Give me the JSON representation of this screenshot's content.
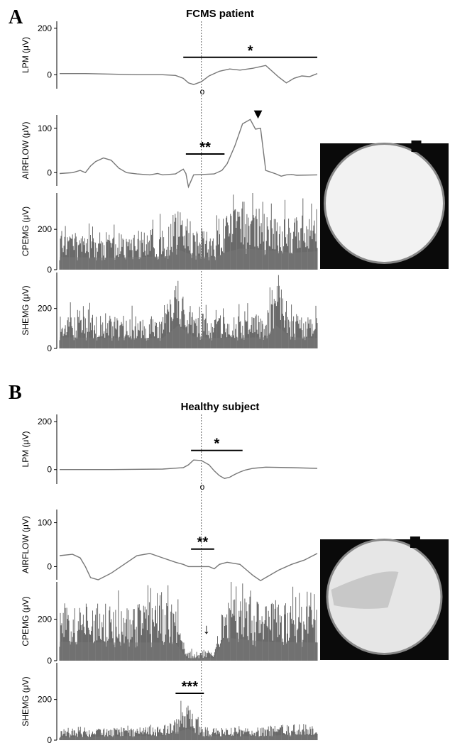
{
  "chart_data": [
    {
      "panel": "A",
      "title": "FCMS patient",
      "type": "line",
      "x_range": [
        0,
        1
      ],
      "event_time": 0.55,
      "photo_name": "endoscopy-image-patient",
      "traces": [
        {
          "name": "LPM (μV)",
          "ylim": [
            -60,
            230
          ],
          "ticks": [
            0,
            200
          ],
          "x": [
            0,
            0.1,
            0.2,
            0.3,
            0.4,
            0.45,
            0.48,
            0.5,
            0.52,
            0.55,
            0.58,
            0.62,
            0.66,
            0.7,
            0.75,
            0.8,
            0.85,
            0.88,
            0.91,
            0.94,
            0.97,
            1.0
          ],
          "y": [
            5,
            5,
            3,
            0,
            0,
            -3,
            -15,
            -35,
            -42,
            -30,
            -5,
            15,
            25,
            20,
            28,
            40,
            -10,
            -35,
            -15,
            -5,
            -8,
            5
          ],
          "annotations": [
            {
              "text": "*",
              "x0": 0.48,
              "x1": 1.0,
              "y": 75
            }
          ]
        },
        {
          "name": "AIRFLOW (μV)",
          "ylim": [
            -30,
            130
          ],
          "ticks": [
            0,
            100
          ],
          "x": [
            0,
            0.05,
            0.08,
            0.1,
            0.12,
            0.14,
            0.17,
            0.2,
            0.23,
            0.26,
            0.3,
            0.35,
            0.38,
            0.4,
            0.45,
            0.48,
            0.49,
            0.5,
            0.52,
            0.6,
            0.63,
            0.65,
            0.68,
            0.71,
            0.74,
            0.76,
            0.78,
            0.8,
            0.84,
            0.86,
            0.88,
            0.9,
            0.92,
            1.0
          ],
          "y": [
            -2,
            0,
            5,
            0,
            15,
            25,
            33,
            28,
            10,
            0,
            -3,
            -5,
            -2,
            -5,
            -3,
            8,
            -2,
            -32,
            -5,
            -3,
            5,
            20,
            60,
            110,
            120,
            98,
            100,
            5,
            -3,
            -8,
            -5,
            -4,
            -6,
            -5
          ],
          "annotations": [
            {
              "text": "**",
              "x0": 0.49,
              "x1": 0.64,
              "y": 42
            },
            {
              "text": "▼",
              "x": 0.77,
              "y": 122
            }
          ]
        },
        {
          "name": "CPEMG (μV)",
          "ylim": [
            0,
            380
          ],
          "ticks": [
            0,
            200
          ],
          "type": "emg",
          "envelope": [
            {
              "x": 0.0,
              "y": 180
            },
            {
              "x": 0.2,
              "y": 170
            },
            {
              "x": 0.42,
              "y": 190
            },
            {
              "x": 0.45,
              "y": 300
            },
            {
              "x": 0.52,
              "y": 200
            },
            {
              "x": 0.6,
              "y": 170
            },
            {
              "x": 0.64,
              "y": 240
            },
            {
              "x": 0.7,
              "y": 300
            },
            {
              "x": 0.8,
              "y": 280
            },
            {
              "x": 0.9,
              "y": 240
            },
            {
              "x": 1.0,
              "y": 260
            }
          ]
        },
        {
          "name": "SHEMG (μV)",
          "ylim": [
            0,
            380
          ],
          "ticks": [
            0,
            200
          ],
          "type": "emg",
          "envelope": [
            {
              "x": 0.0,
              "y": 160
            },
            {
              "x": 0.2,
              "y": 150
            },
            {
              "x": 0.4,
              "y": 150
            },
            {
              "x": 0.46,
              "y": 330
            },
            {
              "x": 0.52,
              "y": 170
            },
            {
              "x": 0.6,
              "y": 150
            },
            {
              "x": 0.8,
              "y": 160
            },
            {
              "x": 0.84,
              "y": 330
            },
            {
              "x": 0.9,
              "y": 160
            },
            {
              "x": 1.0,
              "y": 150
            }
          ]
        }
      ]
    },
    {
      "panel": "B",
      "title": "Healthy subject",
      "type": "line",
      "x_range": [
        0,
        1
      ],
      "event_time": 0.55,
      "photo_name": "endoscopy-image-healthy",
      "traces": [
        {
          "name": "LPM (μV)",
          "ylim": [
            -60,
            230
          ],
          "ticks": [
            0,
            200
          ],
          "x": [
            0,
            0.2,
            0.4,
            0.48,
            0.5,
            0.52,
            0.55,
            0.58,
            0.6,
            0.62,
            0.64,
            0.66,
            0.68,
            0.7,
            0.72,
            0.75,
            0.8,
            0.9,
            1.0
          ],
          "y": [
            0,
            0,
            2,
            8,
            20,
            40,
            38,
            20,
            -5,
            -25,
            -37,
            -32,
            -20,
            -10,
            -2,
            5,
            10,
            8,
            5
          ],
          "annotations": [
            {
              "text": "*",
              "x0": 0.51,
              "x1": 0.71,
              "y": 80
            }
          ]
        },
        {
          "name": "AIRFLOW (μV)",
          "ylim": [
            -30,
            130
          ],
          "ticks": [
            0,
            100
          ],
          "x": [
            0,
            0.05,
            0.08,
            0.1,
            0.12,
            0.15,
            0.2,
            0.25,
            0.3,
            0.35,
            0.4,
            0.45,
            0.48,
            0.5,
            0.52,
            0.55,
            0.58,
            0.6,
            0.62,
            0.65,
            0.7,
            0.72,
            0.75,
            0.78,
            0.8,
            0.85,
            0.9,
            0.95,
            1.0
          ],
          "y": [
            25,
            28,
            20,
            0,
            -25,
            -30,
            -15,
            5,
            25,
            30,
            20,
            10,
            5,
            0,
            0,
            0,
            0,
            -5,
            5,
            10,
            5,
            -5,
            -20,
            -32,
            -25,
            -8,
            5,
            15,
            30
          ],
          "annotations": [
            {
              "text": "**",
              "x0": 0.51,
              "x1": 0.6,
              "y": 40
            }
          ]
        },
        {
          "name": "CPEMG (μV)",
          "ylim": [
            0,
            380
          ],
          "ticks": [
            0,
            200
          ],
          "type": "emg",
          "envelope": [
            {
              "x": 0.0,
              "y": 260
            },
            {
              "x": 0.2,
              "y": 250
            },
            {
              "x": 0.45,
              "y": 250
            },
            {
              "x": 0.49,
              "y": 40
            },
            {
              "x": 0.6,
              "y": 40
            },
            {
              "x": 0.64,
              "y": 320
            },
            {
              "x": 0.8,
              "y": 260
            },
            {
              "x": 1.0,
              "y": 250
            }
          ],
          "annotations": [
            {
              "text": "↓",
              "x": 0.57,
              "y": 130
            }
          ]
        },
        {
          "name": "SHEMG (μV)",
          "ylim": [
            0,
            380
          ],
          "ticks": [
            0,
            200
          ],
          "type": "emg",
          "envelope": [
            {
              "x": 0.0,
              "y": 40
            },
            {
              "x": 0.2,
              "y": 55
            },
            {
              "x": 0.4,
              "y": 60
            },
            {
              "x": 0.45,
              "y": 110
            },
            {
              "x": 0.5,
              "y": 160
            },
            {
              "x": 0.55,
              "y": 60
            },
            {
              "x": 0.75,
              "y": 55
            },
            {
              "x": 0.95,
              "y": 80
            },
            {
              "x": 1.0,
              "y": 40
            }
          ],
          "annotations": [
            {
              "text": "***",
              "x0": 0.45,
              "x1": 0.56,
              "y": 230
            }
          ]
        }
      ]
    }
  ]
}
